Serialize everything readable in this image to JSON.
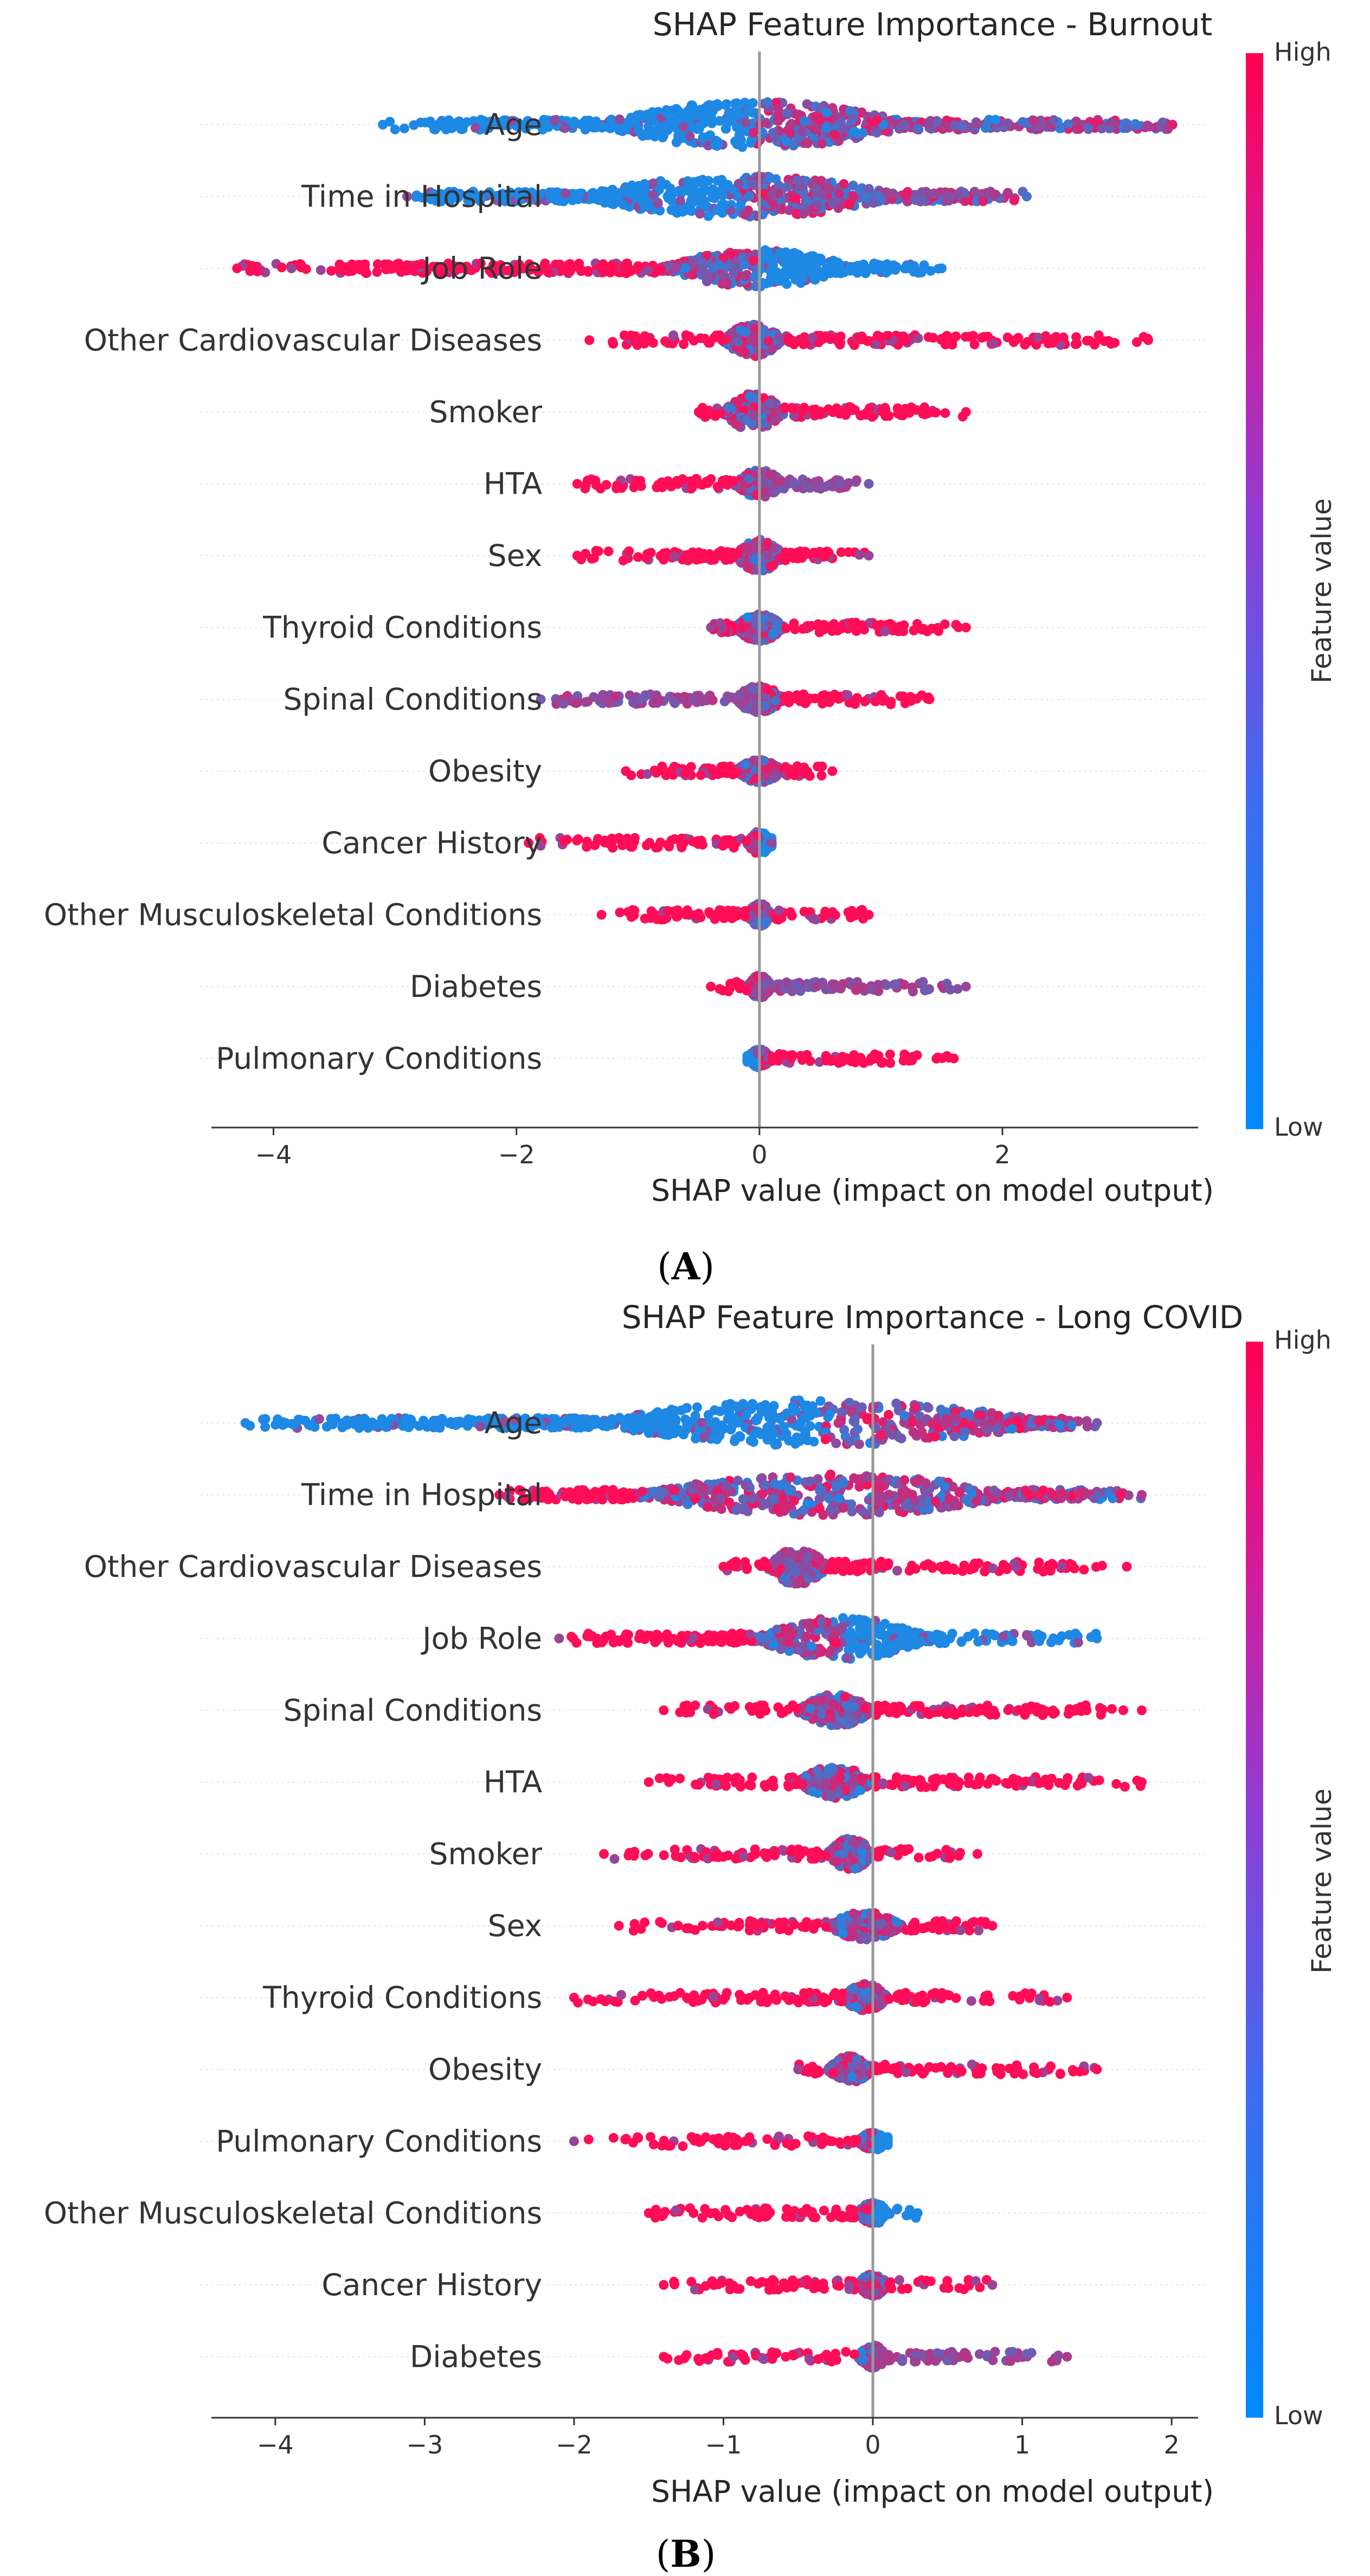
{
  "figure": {
    "panel_a_label": "A",
    "panel_b_label": "B"
  },
  "colors": {
    "low": "#1e88e5",
    "high": "#ff0d57",
    "zero_line": "#999999",
    "grid": "#e5e5e5"
  },
  "chart_data": [
    {
      "type": "scatter",
      "subtype": "shap-beeswarm",
      "title": "SHAP Feature Importance - Burnout",
      "xlabel": "SHAP value (impact on model output)",
      "ylabel": "",
      "xlim": [
        -4.6,
        3.7
      ],
      "xticks": [
        "−4",
        "−2",
        "0",
        "2"
      ],
      "xtick_values": [
        -4,
        -2,
        0,
        2
      ],
      "colorbar": {
        "label": "Feature value",
        "high_label": "High",
        "low_label": "Low"
      },
      "features": [
        {
          "name": "Age",
          "min": -3.1,
          "max": 3.4,
          "core_min": -1.4,
          "core_max": 1.3,
          "core_width": 1.0,
          "left_color": "blue",
          "right_color": "mixed"
        },
        {
          "name": "Time in Hospital",
          "min": -2.9,
          "max": 2.2,
          "core_min": -1.5,
          "core_max": 1.2,
          "core_width": 0.9,
          "left_color": "blue",
          "right_color": "mixed"
        },
        {
          "name": "Job Role",
          "min": -4.3,
          "max": 1.5,
          "core_min": -0.8,
          "core_max": 0.8,
          "core_width": 0.8,
          "left_color": "red",
          "right_color": "blue"
        },
        {
          "name": "Other Cardiovascular Diseases",
          "min": -1.4,
          "max": 3.2,
          "core_min": -0.3,
          "core_max": 0.2,
          "core_width": 0.7,
          "left_color": "red",
          "right_color": "red"
        },
        {
          "name": "Smoker",
          "min": -0.5,
          "max": 1.7,
          "core_min": -0.3,
          "core_max": 0.2,
          "core_width": 0.8,
          "left_color": "red",
          "right_color": "red"
        },
        {
          "name": "HTA",
          "min": -1.5,
          "max": 0.9,
          "core_min": -0.2,
          "core_max": 0.2,
          "core_width": 0.6,
          "left_color": "red",
          "right_color": "purple"
        },
        {
          "name": "Sex",
          "min": -1.5,
          "max": 0.9,
          "core_min": -0.2,
          "core_max": 0.2,
          "core_width": 0.7,
          "left_color": "red",
          "right_color": "red"
        },
        {
          "name": "Thyroid Conditions",
          "min": -0.4,
          "max": 1.7,
          "core_min": -0.2,
          "core_max": 0.2,
          "core_width": 0.6,
          "left_color": "red",
          "right_color": "red"
        },
        {
          "name": "Spinal Conditions",
          "min": -1.8,
          "max": 1.4,
          "core_min": -0.2,
          "core_max": 0.2,
          "core_width": 0.6,
          "left_color": "purple",
          "right_color": "red"
        },
        {
          "name": "Obesity",
          "min": -1.1,
          "max": 0.6,
          "core_min": -0.2,
          "core_max": 0.2,
          "core_width": 0.5,
          "left_color": "red",
          "right_color": "red"
        },
        {
          "name": "Cancer History",
          "min": -1.9,
          "max": 0.1,
          "core_min": -0.1,
          "core_max": 0.1,
          "core_width": 0.5,
          "left_color": "red",
          "right_color": "blue"
        },
        {
          "name": "Other Musculoskeletal Conditions",
          "min": -1.3,
          "max": 0.9,
          "core_min": -0.1,
          "core_max": 0.1,
          "core_width": 0.5,
          "left_color": "red",
          "right_color": "red"
        },
        {
          "name": "Diabetes",
          "min": -0.4,
          "max": 1.7,
          "core_min": -0.1,
          "core_max": 0.1,
          "core_width": 0.5,
          "left_color": "red",
          "right_color": "purple"
        },
        {
          "name": "Pulmonary Conditions",
          "min": -0.1,
          "max": 1.6,
          "core_min": -0.1,
          "core_max": 0.1,
          "core_width": 0.4,
          "left_color": "blue",
          "right_color": "red"
        }
      ]
    },
    {
      "type": "scatter",
      "subtype": "shap-beeswarm",
      "title": "SHAP Feature Importance - Long COVID",
      "xlabel": "SHAP value (impact on model output)",
      "ylabel": "",
      "xlim": [
        -4.5,
        2.25
      ],
      "xticks": [
        "−4",
        "−3",
        "−2",
        "−1",
        "0",
        "1",
        "2"
      ],
      "xtick_values": [
        -4,
        -3,
        -2,
        -1,
        0,
        1,
        2
      ],
      "colorbar": {
        "label": "Feature value",
        "high_label": "High",
        "low_label": "Low"
      },
      "features": [
        {
          "name": "Age",
          "min": -4.2,
          "max": 1.5,
          "core_min": -1.9,
          "core_max": 1.2,
          "core_width": 1.0,
          "left_color": "blue",
          "right_color": "mixed"
        },
        {
          "name": "Time in Hospital",
          "min": -2.5,
          "max": 1.8,
          "core_min": -1.6,
          "core_max": 1.0,
          "core_width": 0.9,
          "left_color": "red",
          "right_color": "mixed"
        },
        {
          "name": "Other Cardiovascular Diseases",
          "min": -1.0,
          "max": 1.7,
          "core_min": -0.7,
          "core_max": -0.3,
          "core_width": 0.8,
          "left_color": "red",
          "right_color": "red"
        },
        {
          "name": "Job Role",
          "min": -2.1,
          "max": 1.5,
          "core_min": -0.8,
          "core_max": 0.4,
          "core_width": 0.9,
          "left_color": "red",
          "right_color": "blue"
        },
        {
          "name": "Spinal Conditions",
          "min": -1.4,
          "max": 1.8,
          "core_min": -0.5,
          "core_max": 0.0,
          "core_width": 0.7,
          "left_color": "red",
          "right_color": "red"
        },
        {
          "name": "HTA",
          "min": -1.5,
          "max": 1.8,
          "core_min": -0.5,
          "core_max": 0.0,
          "core_width": 0.7,
          "left_color": "red",
          "right_color": "red"
        },
        {
          "name": "Smoker",
          "min": -1.8,
          "max": 0.7,
          "core_min": -0.3,
          "core_max": 0.0,
          "core_width": 0.7,
          "left_color": "red",
          "right_color": "red"
        },
        {
          "name": "Sex",
          "min": -1.7,
          "max": 0.8,
          "core_min": -0.3,
          "core_max": 0.2,
          "core_width": 0.6,
          "left_color": "red",
          "right_color": "red"
        },
        {
          "name": "Thyroid Conditions",
          "min": -2.0,
          "max": 1.3,
          "core_min": -0.2,
          "core_max": 0.1,
          "core_width": 0.6,
          "left_color": "red",
          "right_color": "red"
        },
        {
          "name": "Obesity",
          "min": -0.5,
          "max": 1.5,
          "core_min": -0.3,
          "core_max": 0.0,
          "core_width": 0.6,
          "left_color": "red",
          "right_color": "red"
        },
        {
          "name": "Pulmonary Conditions",
          "min": -2.0,
          "max": 0.1,
          "core_min": -0.1,
          "core_max": 0.1,
          "core_width": 0.4,
          "left_color": "red",
          "right_color": "blue"
        },
        {
          "name": "Other Musculoskeletal Conditions",
          "min": -1.5,
          "max": 0.3,
          "core_min": -0.1,
          "core_max": 0.1,
          "core_width": 0.5,
          "left_color": "red",
          "right_color": "blue"
        },
        {
          "name": "Cancer History",
          "min": -1.4,
          "max": 0.8,
          "core_min": -0.1,
          "core_max": 0.1,
          "core_width": 0.5,
          "left_color": "red",
          "right_color": "red"
        },
        {
          "name": "Diabetes",
          "min": -1.4,
          "max": 1.3,
          "core_min": -0.1,
          "core_max": 0.1,
          "core_width": 0.5,
          "left_color": "red",
          "right_color": "purple"
        }
      ]
    }
  ]
}
